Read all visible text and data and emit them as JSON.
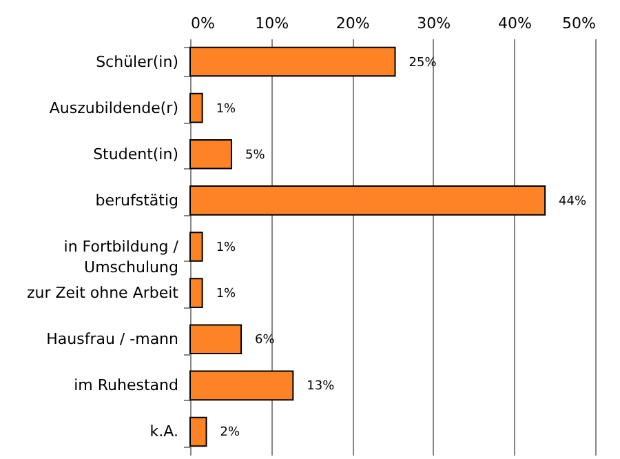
{
  "chart_data": {
    "type": "bar",
    "orientation": "horizontal",
    "categories": [
      "Schüler(in)",
      "Auszubildende(r)",
      "Student(in)",
      "berufstätig",
      "in Fortbildung / Umschulung",
      "zur Zeit ohne Arbeit",
      "Hausfrau / -mann",
      "im Ruhestand",
      "k.A."
    ],
    "values": [
      25.3,
      1.5,
      5.1,
      43.8,
      1.5,
      1.5,
      6.3,
      12.7,
      2.0
    ],
    "value_labels": [
      "25%",
      "1%",
      "5%",
      "44%",
      "1%",
      "1%",
      "6%",
      "13%",
      "2%"
    ],
    "color": "#fd8324",
    "xlim": [
      0,
      50
    ],
    "xticks": [
      {
        "value": 0,
        "label": "0%"
      },
      {
        "value": 10,
        "label": "10%"
      },
      {
        "value": 20,
        "label": "20%"
      },
      {
        "value": 30,
        "label": "30%"
      },
      {
        "value": 40,
        "label": "40%"
      },
      {
        "value": 50,
        "label": "50%"
      }
    ],
    "grid": "x"
  }
}
